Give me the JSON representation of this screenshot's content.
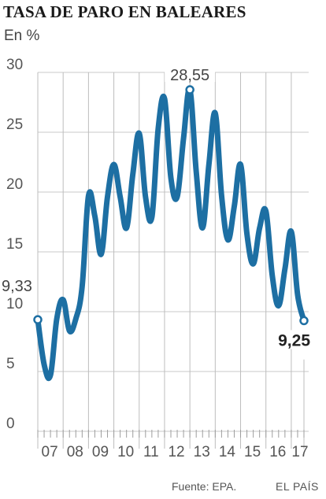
{
  "chart_data": {
    "type": "line",
    "title": "TASA DE PARO EN BALEARES",
    "subtitle": "En %",
    "ylim": [
      0,
      30
    ],
    "yticks": [
      "0",
      "5",
      "10",
      "15",
      "20",
      "25",
      "30"
    ],
    "ytick_values": [
      0,
      5,
      10,
      15,
      20,
      25,
      30
    ],
    "year_labels": [
      "07",
      "08",
      "09",
      "10",
      "11",
      "12",
      "13",
      "14",
      "15",
      "16",
      "17"
    ],
    "x_unit": "quarter",
    "grid": true,
    "line_color": "#1d6fa3",
    "values": [
      9.33,
      5.6,
      4.7,
      9.4,
      11,
      8.4,
      9.4,
      12.1,
      19.7,
      18,
      14.8,
      19.6,
      22.3,
      19.6,
      17,
      21.5,
      24.9,
      19.6,
      17.9,
      25.3,
      27.8,
      21.2,
      19.6,
      24.5,
      28.55,
      21.7,
      17,
      22.3,
      26.6,
      19.7,
      16,
      18.8,
      22.3,
      16.5,
      14,
      17,
      18.4,
      13,
      10.5,
      13.6,
      16.7,
      11.4,
      9.25
    ],
    "annotations": [
      {
        "label": "9,33",
        "index": 0,
        "value": 9.33
      },
      {
        "label": "28,55",
        "index": 24,
        "value": 28.55
      },
      {
        "label": "9,25",
        "index": 42,
        "value": 9.25
      }
    ]
  },
  "footer": {
    "source": "Fuente: EPA.",
    "brand": "EL PAÍS"
  }
}
